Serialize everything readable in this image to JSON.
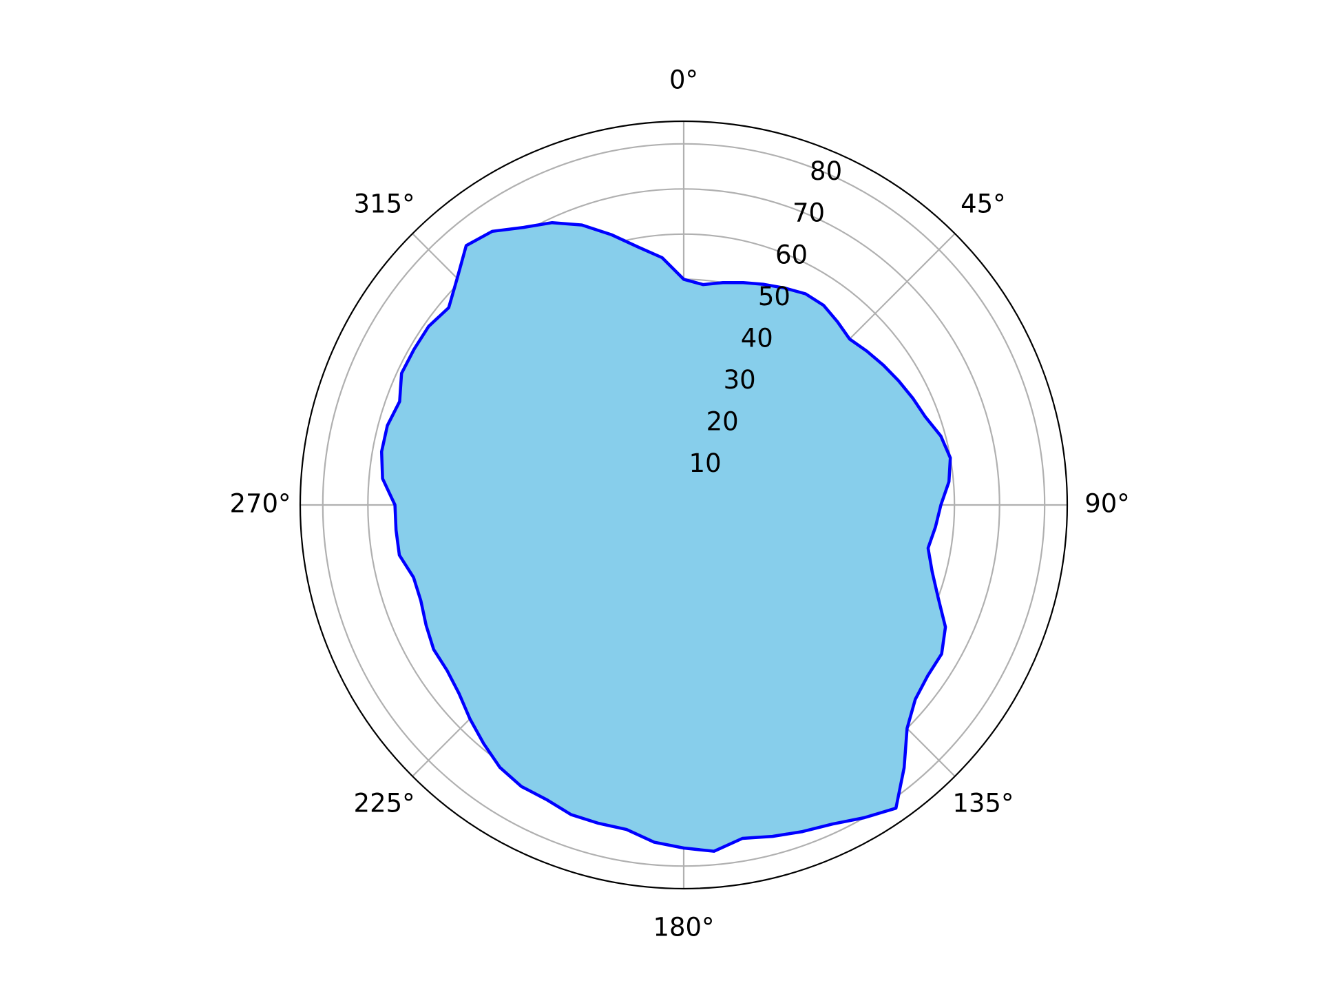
{
  "chart_data": {
    "type": "area",
    "projection": "polar",
    "theta_direction": "clockwise",
    "theta_zero_location": "top",
    "title": "",
    "rlim": [
      0,
      85
    ],
    "r_ticks": [
      10,
      20,
      30,
      40,
      50,
      60,
      70,
      80
    ],
    "r_tick_labels": [
      "10",
      "20",
      "30",
      "40",
      "50",
      "60",
      "70",
      "80"
    ],
    "theta_ticks": [
      0,
      45,
      90,
      135,
      180,
      225,
      270,
      315
    ],
    "theta_tick_labels": [
      "0°",
      "45°",
      "90°",
      "135°",
      "180°",
      "225°",
      "270°",
      "315°"
    ],
    "grid": true,
    "legend": false,
    "series": [
      {
        "fill_color": "#87ceeb",
        "line_color": "#0000ff",
        "theta_deg": [
          0,
          5,
          10,
          15,
          20,
          25,
          30,
          35,
          40,
          45,
          50,
          55,
          60,
          65,
          70,
          75,
          80,
          85,
          90,
          95,
          100,
          105,
          110,
          115,
          120,
          125,
          130,
          135,
          140,
          145,
          150,
          155,
          160,
          165,
          170,
          175,
          180,
          185,
          190,
          195,
          200,
          205,
          210,
          215,
          220,
          225,
          230,
          235,
          240,
          245,
          250,
          255,
          260,
          265,
          270,
          275,
          280,
          285,
          290,
          295,
          300,
          305,
          310,
          315,
          320,
          325,
          330,
          335,
          340,
          345,
          350,
          355
        ],
        "r": [
          50,
          49,
          50,
          51,
          52,
          53,
          54,
          54,
          53,
          52,
          53,
          54,
          55,
          56,
          57,
          59,
          60,
          59,
          57,
          56,
          55,
          57,
          60,
          64,
          66,
          66,
          67,
          70,
          76,
          82,
          80,
          78,
          77,
          76,
          75,
          77,
          76,
          75,
          73,
          73,
          73,
          72,
          72,
          71,
          69,
          67,
          65,
          64,
          64,
          63,
          62,
          62,
          64,
          64,
          64,
          67,
          68,
          68,
          67,
          69,
          69,
          69,
          68,
          71,
          75,
          74,
          71,
          69,
          66,
          62,
          58,
          55
        ]
      }
    ]
  }
}
